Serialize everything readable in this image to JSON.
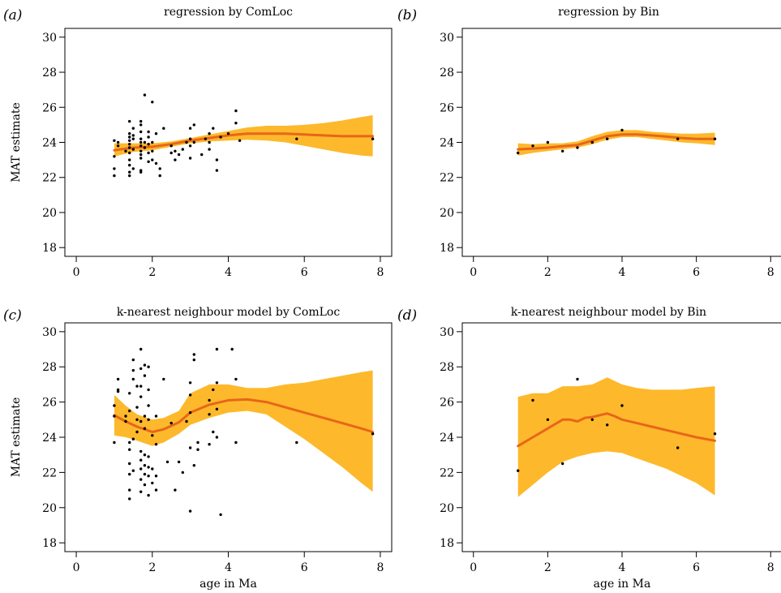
{
  "chart_data": [
    {
      "panel": "(a)",
      "type": "scatter",
      "title": "regression by ComLoc",
      "xlabel": "",
      "ylabel": "MAT estimate",
      "xlim": [
        -0.3,
        8.3
      ],
      "ylim": [
        17.5,
        30.5
      ],
      "xticks": [
        0,
        2,
        4,
        6,
        8
      ],
      "yticks": [
        18,
        20,
        22,
        24,
        26,
        28,
        30
      ],
      "colors": {
        "points": "#000000",
        "band": "#FDB92B",
        "line": "#E8661A"
      },
      "band": {
        "x": [
          1.0,
          1.5,
          2.0,
          2.5,
          3.0,
          3.5,
          4.0,
          4.5,
          5.0,
          5.5,
          6.0,
          6.5,
          7.0,
          7.5,
          7.8
        ],
        "lower": [
          23.2,
          23.45,
          23.55,
          23.75,
          23.95,
          24.05,
          24.1,
          24.15,
          24.1,
          24.0,
          23.8,
          23.6,
          23.4,
          23.25,
          23.2
        ],
        "upper": [
          23.95,
          23.95,
          23.95,
          24.05,
          24.25,
          24.45,
          24.65,
          24.85,
          24.95,
          24.95,
          25.0,
          25.1,
          25.25,
          25.45,
          25.55
        ]
      },
      "series": [
        {
          "x": [
            1.0,
            1.5,
            2.0,
            2.5,
            3.0,
            3.5,
            4.0,
            4.5,
            5.0,
            5.5,
            6.0,
            6.5,
            7.0,
            7.5,
            7.8
          ],
          "y": [
            23.55,
            23.7,
            23.75,
            23.9,
            24.1,
            24.25,
            24.4,
            24.5,
            24.5,
            24.5,
            24.45,
            24.4,
            24.35,
            24.35,
            24.35
          ]
        }
      ],
      "points": [
        [
          1.0,
          22.1
        ],
        [
          1.0,
          22.5
        ],
        [
          1.0,
          23.2
        ],
        [
          1.0,
          24.1
        ],
        [
          1.1,
          23.8
        ],
        [
          1.1,
          24.0
        ],
        [
          1.3,
          23.5
        ],
        [
          1.4,
          22.1
        ],
        [
          1.4,
          22.3
        ],
        [
          1.4,
          22.7
        ],
        [
          1.4,
          23.0
        ],
        [
          1.4,
          23.4
        ],
        [
          1.4,
          23.7
        ],
        [
          1.4,
          23.9
        ],
        [
          1.4,
          24.1
        ],
        [
          1.4,
          24.3
        ],
        [
          1.4,
          24.5
        ],
        [
          1.4,
          25.2
        ],
        [
          1.5,
          22.5
        ],
        [
          1.5,
          23.6
        ],
        [
          1.5,
          24.2
        ],
        [
          1.5,
          24.4
        ],
        [
          1.5,
          24.8
        ],
        [
          1.7,
          22.3
        ],
        [
          1.7,
          22.4
        ],
        [
          1.7,
          23.1
        ],
        [
          1.7,
          23.3
        ],
        [
          1.7,
          23.5
        ],
        [
          1.7,
          23.8
        ],
        [
          1.7,
          24.0
        ],
        [
          1.7,
          24.2
        ],
        [
          1.7,
          24.6
        ],
        [
          1.7,
          25.0
        ],
        [
          1.7,
          25.2
        ],
        [
          1.8,
          26.7
        ],
        [
          1.8,
          23.7
        ],
        [
          1.8,
          24.0
        ],
        [
          1.9,
          22.9
        ],
        [
          1.9,
          23.4
        ],
        [
          1.9,
          23.9
        ],
        [
          1.9,
          24.3
        ],
        [
          1.9,
          24.6
        ],
        [
          2.0,
          23.0
        ],
        [
          2.0,
          23.5
        ],
        [
          2.0,
          24.0
        ],
        [
          2.0,
          26.3
        ],
        [
          2.1,
          22.8
        ],
        [
          2.1,
          24.5
        ],
        [
          2.2,
          22.1
        ],
        [
          2.2,
          22.5
        ],
        [
          2.3,
          24.8
        ],
        [
          2.5,
          23.4
        ],
        [
          2.5,
          23.8
        ],
        [
          2.6,
          23.0
        ],
        [
          2.6,
          23.5
        ],
        [
          2.7,
          23.3
        ],
        [
          2.8,
          23.6
        ],
        [
          2.9,
          24.0
        ],
        [
          3.0,
          23.1
        ],
        [
          3.0,
          23.8
        ],
        [
          3.0,
          24.2
        ],
        [
          3.0,
          24.8
        ],
        [
          3.1,
          24.0
        ],
        [
          3.1,
          25.0
        ],
        [
          3.3,
          23.3
        ],
        [
          3.4,
          24.2
        ],
        [
          3.5,
          23.6
        ],
        [
          3.5,
          24.0
        ],
        [
          3.5,
          24.5
        ],
        [
          3.6,
          24.8
        ],
        [
          3.7,
          22.4
        ],
        [
          3.7,
          23.0
        ],
        [
          3.8,
          24.3
        ],
        [
          4.0,
          24.5
        ],
        [
          4.2,
          25.1
        ],
        [
          4.2,
          25.8
        ],
        [
          4.3,
          24.1
        ],
        [
          5.8,
          24.2
        ],
        [
          7.8,
          24.2
        ]
      ]
    },
    {
      "panel": "(b)",
      "type": "scatter",
      "title": "regression by Bin",
      "xlabel": "",
      "ylabel": "",
      "xlim": [
        -0.3,
        8.3
      ],
      "ylim": [
        17.5,
        30.5
      ],
      "xticks": [
        0,
        2,
        4,
        6,
        8
      ],
      "yticks": [
        18,
        20,
        22,
        24,
        26,
        28,
        30
      ],
      "colors": {
        "points": "#000000",
        "band": "#FDB92B",
        "line": "#E8661A"
      },
      "band": {
        "x": [
          1.2,
          1.6,
          2.0,
          2.4,
          2.8,
          3.2,
          3.6,
          4.0,
          4.4,
          4.8,
          5.2,
          5.6,
          6.0,
          6.5
        ],
        "lower": [
          23.25,
          23.4,
          23.5,
          23.6,
          23.7,
          23.9,
          24.15,
          24.3,
          24.3,
          24.2,
          24.1,
          24.0,
          23.95,
          23.85
        ],
        "upper": [
          23.95,
          23.9,
          23.95,
          23.95,
          24.05,
          24.35,
          24.6,
          24.7,
          24.7,
          24.6,
          24.55,
          24.5,
          24.5,
          24.55
        ]
      },
      "series": [
        {
          "x": [
            1.2,
            1.6,
            2.0,
            2.4,
            2.8,
            3.2,
            3.6,
            4.0,
            4.4,
            4.8,
            5.2,
            5.6,
            6.0,
            6.5
          ],
          "y": [
            23.6,
            23.65,
            23.7,
            23.78,
            23.85,
            24.1,
            24.35,
            24.45,
            24.45,
            24.4,
            24.33,
            24.25,
            24.2,
            24.2
          ]
        }
      ],
      "points": [
        [
          1.2,
          23.4
        ],
        [
          1.6,
          23.8
        ],
        [
          2.0,
          24.0
        ],
        [
          2.4,
          23.5
        ],
        [
          2.8,
          23.7
        ],
        [
          3.2,
          24.0
        ],
        [
          3.6,
          24.2
        ],
        [
          4.0,
          24.7
        ],
        [
          5.5,
          24.2
        ],
        [
          6.5,
          24.2
        ]
      ]
    },
    {
      "panel": "(c)",
      "type": "scatter",
      "title": "k-nearest neighbour model by ComLoc",
      "xlabel": "age in Ma",
      "ylabel": "MAT estimate",
      "xlim": [
        -0.3,
        8.3
      ],
      "ylim": [
        17.5,
        30.5
      ],
      "xticks": [
        0,
        2,
        4,
        6,
        8
      ],
      "yticks": [
        18,
        20,
        22,
        24,
        26,
        28,
        30
      ],
      "colors": {
        "points": "#000000",
        "band": "#FDB92B",
        "line": "#E8661A"
      },
      "band": {
        "x": [
          1.0,
          1.3,
          1.6,
          2.0,
          2.3,
          2.7,
          3.0,
          3.5,
          4.0,
          4.5,
          5.0,
          5.5,
          6.0,
          6.5,
          7.0,
          7.5,
          7.8
        ],
        "lower": [
          24.1,
          24.0,
          23.8,
          23.5,
          23.7,
          24.2,
          24.7,
          25.1,
          25.4,
          25.5,
          25.3,
          24.6,
          23.9,
          23.1,
          22.3,
          21.4,
          20.9
        ],
        "upper": [
          26.4,
          25.8,
          25.3,
          25.0,
          25.1,
          25.5,
          26.5,
          27.0,
          27.0,
          26.8,
          26.8,
          27.0,
          27.1,
          27.3,
          27.5,
          27.7,
          27.8
        ]
      },
      "series": [
        {
          "x": [
            1.0,
            1.3,
            1.6,
            2.0,
            2.3,
            2.7,
            3.0,
            3.5,
            4.0,
            4.5,
            5.0,
            5.5,
            6.0,
            6.5,
            7.0,
            7.5,
            7.8
          ],
          "y": [
            25.25,
            24.9,
            24.6,
            24.3,
            24.45,
            24.85,
            25.4,
            25.85,
            26.1,
            26.15,
            26.0,
            25.7,
            25.4,
            25.1,
            24.8,
            24.5,
            24.3
          ]
        }
      ],
      "points": [
        [
          1.0,
          23.7
        ],
        [
          1.0,
          25.2
        ],
        [
          1.0,
          25.8
        ],
        [
          1.1,
          26.7
        ],
        [
          1.1,
          27.3
        ],
        [
          1.1,
          26.6
        ],
        [
          1.3,
          24.9
        ],
        [
          1.3,
          25.2
        ],
        [
          1.4,
          20.5
        ],
        [
          1.4,
          21.0
        ],
        [
          1.4,
          21.9
        ],
        [
          1.4,
          22.5
        ],
        [
          1.4,
          23.3
        ],
        [
          1.4,
          23.7
        ],
        [
          1.4,
          25.5
        ],
        [
          1.4,
          26.5
        ],
        [
          1.5,
          27.3
        ],
        [
          1.5,
          27.8
        ],
        [
          1.5,
          28.4
        ],
        [
          1.5,
          22.1
        ],
        [
          1.5,
          23.9
        ],
        [
          1.6,
          24.3
        ],
        [
          1.6,
          25.0
        ],
        [
          1.6,
          25.7
        ],
        [
          1.6,
          26.9
        ],
        [
          1.7,
          20.9
        ],
        [
          1.7,
          21.6
        ],
        [
          1.7,
          22.2
        ],
        [
          1.7,
          22.7
        ],
        [
          1.7,
          23.2
        ],
        [
          1.7,
          24.9
        ],
        [
          1.7,
          26.3
        ],
        [
          1.7,
          26.9
        ],
        [
          1.7,
          27.9
        ],
        [
          1.7,
          29.0
        ],
        [
          1.8,
          21.3
        ],
        [
          1.8,
          21.9
        ],
        [
          1.8,
          22.4
        ],
        [
          1.8,
          23.0
        ],
        [
          1.8,
          24.5
        ],
        [
          1.8,
          25.2
        ],
        [
          1.8,
          27.5
        ],
        [
          1.8,
          28.1
        ],
        [
          1.9,
          20.7
        ],
        [
          1.9,
          21.8
        ],
        [
          1.9,
          22.3
        ],
        [
          1.9,
          22.9
        ],
        [
          1.9,
          25.0
        ],
        [
          1.9,
          25.8
        ],
        [
          1.9,
          26.7
        ],
        [
          1.9,
          28.0
        ],
        [
          2.0,
          21.4
        ],
        [
          2.0,
          22.2
        ],
        [
          2.0,
          24.1
        ],
        [
          2.1,
          21.0
        ],
        [
          2.1,
          21.8
        ],
        [
          2.1,
          23.6
        ],
        [
          2.1,
          25.2
        ],
        [
          2.3,
          27.3
        ],
        [
          2.4,
          22.6
        ],
        [
          2.5,
          24.8
        ],
        [
          2.6,
          21.0
        ],
        [
          2.7,
          22.6
        ],
        [
          2.8,
          22.0
        ],
        [
          2.9,
          24.9
        ],
        [
          3.0,
          19.8
        ],
        [
          3.0,
          23.4
        ],
        [
          3.0,
          25.4
        ],
        [
          3.0,
          26.4
        ],
        [
          3.0,
          27.1
        ],
        [
          3.1,
          28.4
        ],
        [
          3.1,
          28.7
        ],
        [
          3.1,
          22.4
        ],
        [
          3.2,
          23.7
        ],
        [
          3.2,
          23.3
        ],
        [
          3.5,
          23.6
        ],
        [
          3.5,
          25.3
        ],
        [
          3.5,
          26.1
        ],
        [
          3.6,
          24.3
        ],
        [
          3.6,
          26.7
        ],
        [
          3.7,
          24.0
        ],
        [
          3.7,
          25.6
        ],
        [
          3.7,
          27.1
        ],
        [
          3.7,
          29.0
        ],
        [
          3.8,
          19.6
        ],
        [
          4.1,
          29.0
        ],
        [
          4.2,
          23.7
        ],
        [
          4.2,
          27.3
        ],
        [
          5.8,
          23.7
        ],
        [
          7.8,
          24.2
        ]
      ]
    },
    {
      "panel": "(d)",
      "type": "scatter",
      "title": "k-nearest neighbour model by Bin",
      "xlabel": "age in Ma",
      "ylabel": "",
      "xlim": [
        -0.3,
        8.3
      ],
      "ylim": [
        17.5,
        30.5
      ],
      "xticks": [
        0,
        2,
        4,
        6,
        8
      ],
      "yticks": [
        18,
        20,
        22,
        24,
        26,
        28,
        30
      ],
      "colors": {
        "points": "#000000",
        "band": "#FDB92B",
        "line": "#E8661A"
      },
      "band": {
        "x": [
          1.2,
          1.6,
          2.0,
          2.4,
          2.8,
          3.2,
          3.6,
          4.0,
          4.4,
          4.8,
          5.2,
          5.6,
          6.0,
          6.5
        ],
        "lower": [
          20.6,
          21.3,
          22.0,
          22.6,
          22.9,
          23.1,
          23.2,
          23.1,
          22.8,
          22.5,
          22.2,
          21.8,
          21.4,
          20.7
        ],
        "upper": [
          26.3,
          26.5,
          26.5,
          26.9,
          26.9,
          27.0,
          27.4,
          27.0,
          26.8,
          26.7,
          26.7,
          26.7,
          26.8,
          26.9
        ]
      },
      "series": [
        {
          "x": [
            1.2,
            1.6,
            2.0,
            2.4,
            2.6,
            2.8,
            3.0,
            3.2,
            3.6,
            3.8,
            4.0,
            4.4,
            4.8,
            5.2,
            5.6,
            6.0,
            6.5
          ],
          "y": [
            23.5,
            24.0,
            24.5,
            25.0,
            25.0,
            24.9,
            25.1,
            25.15,
            25.35,
            25.2,
            25.0,
            24.8,
            24.6,
            24.4,
            24.2,
            24.0,
            23.8
          ]
        }
      ],
      "points": [
        [
          1.2,
          22.1
        ],
        [
          1.6,
          26.1
        ],
        [
          2.0,
          25.0
        ],
        [
          2.4,
          22.5
        ],
        [
          2.8,
          27.3
        ],
        [
          3.2,
          25.0
        ],
        [
          3.6,
          24.7
        ],
        [
          4.0,
          25.8
        ],
        [
          5.5,
          23.4
        ],
        [
          6.5,
          24.2
        ]
      ]
    }
  ]
}
